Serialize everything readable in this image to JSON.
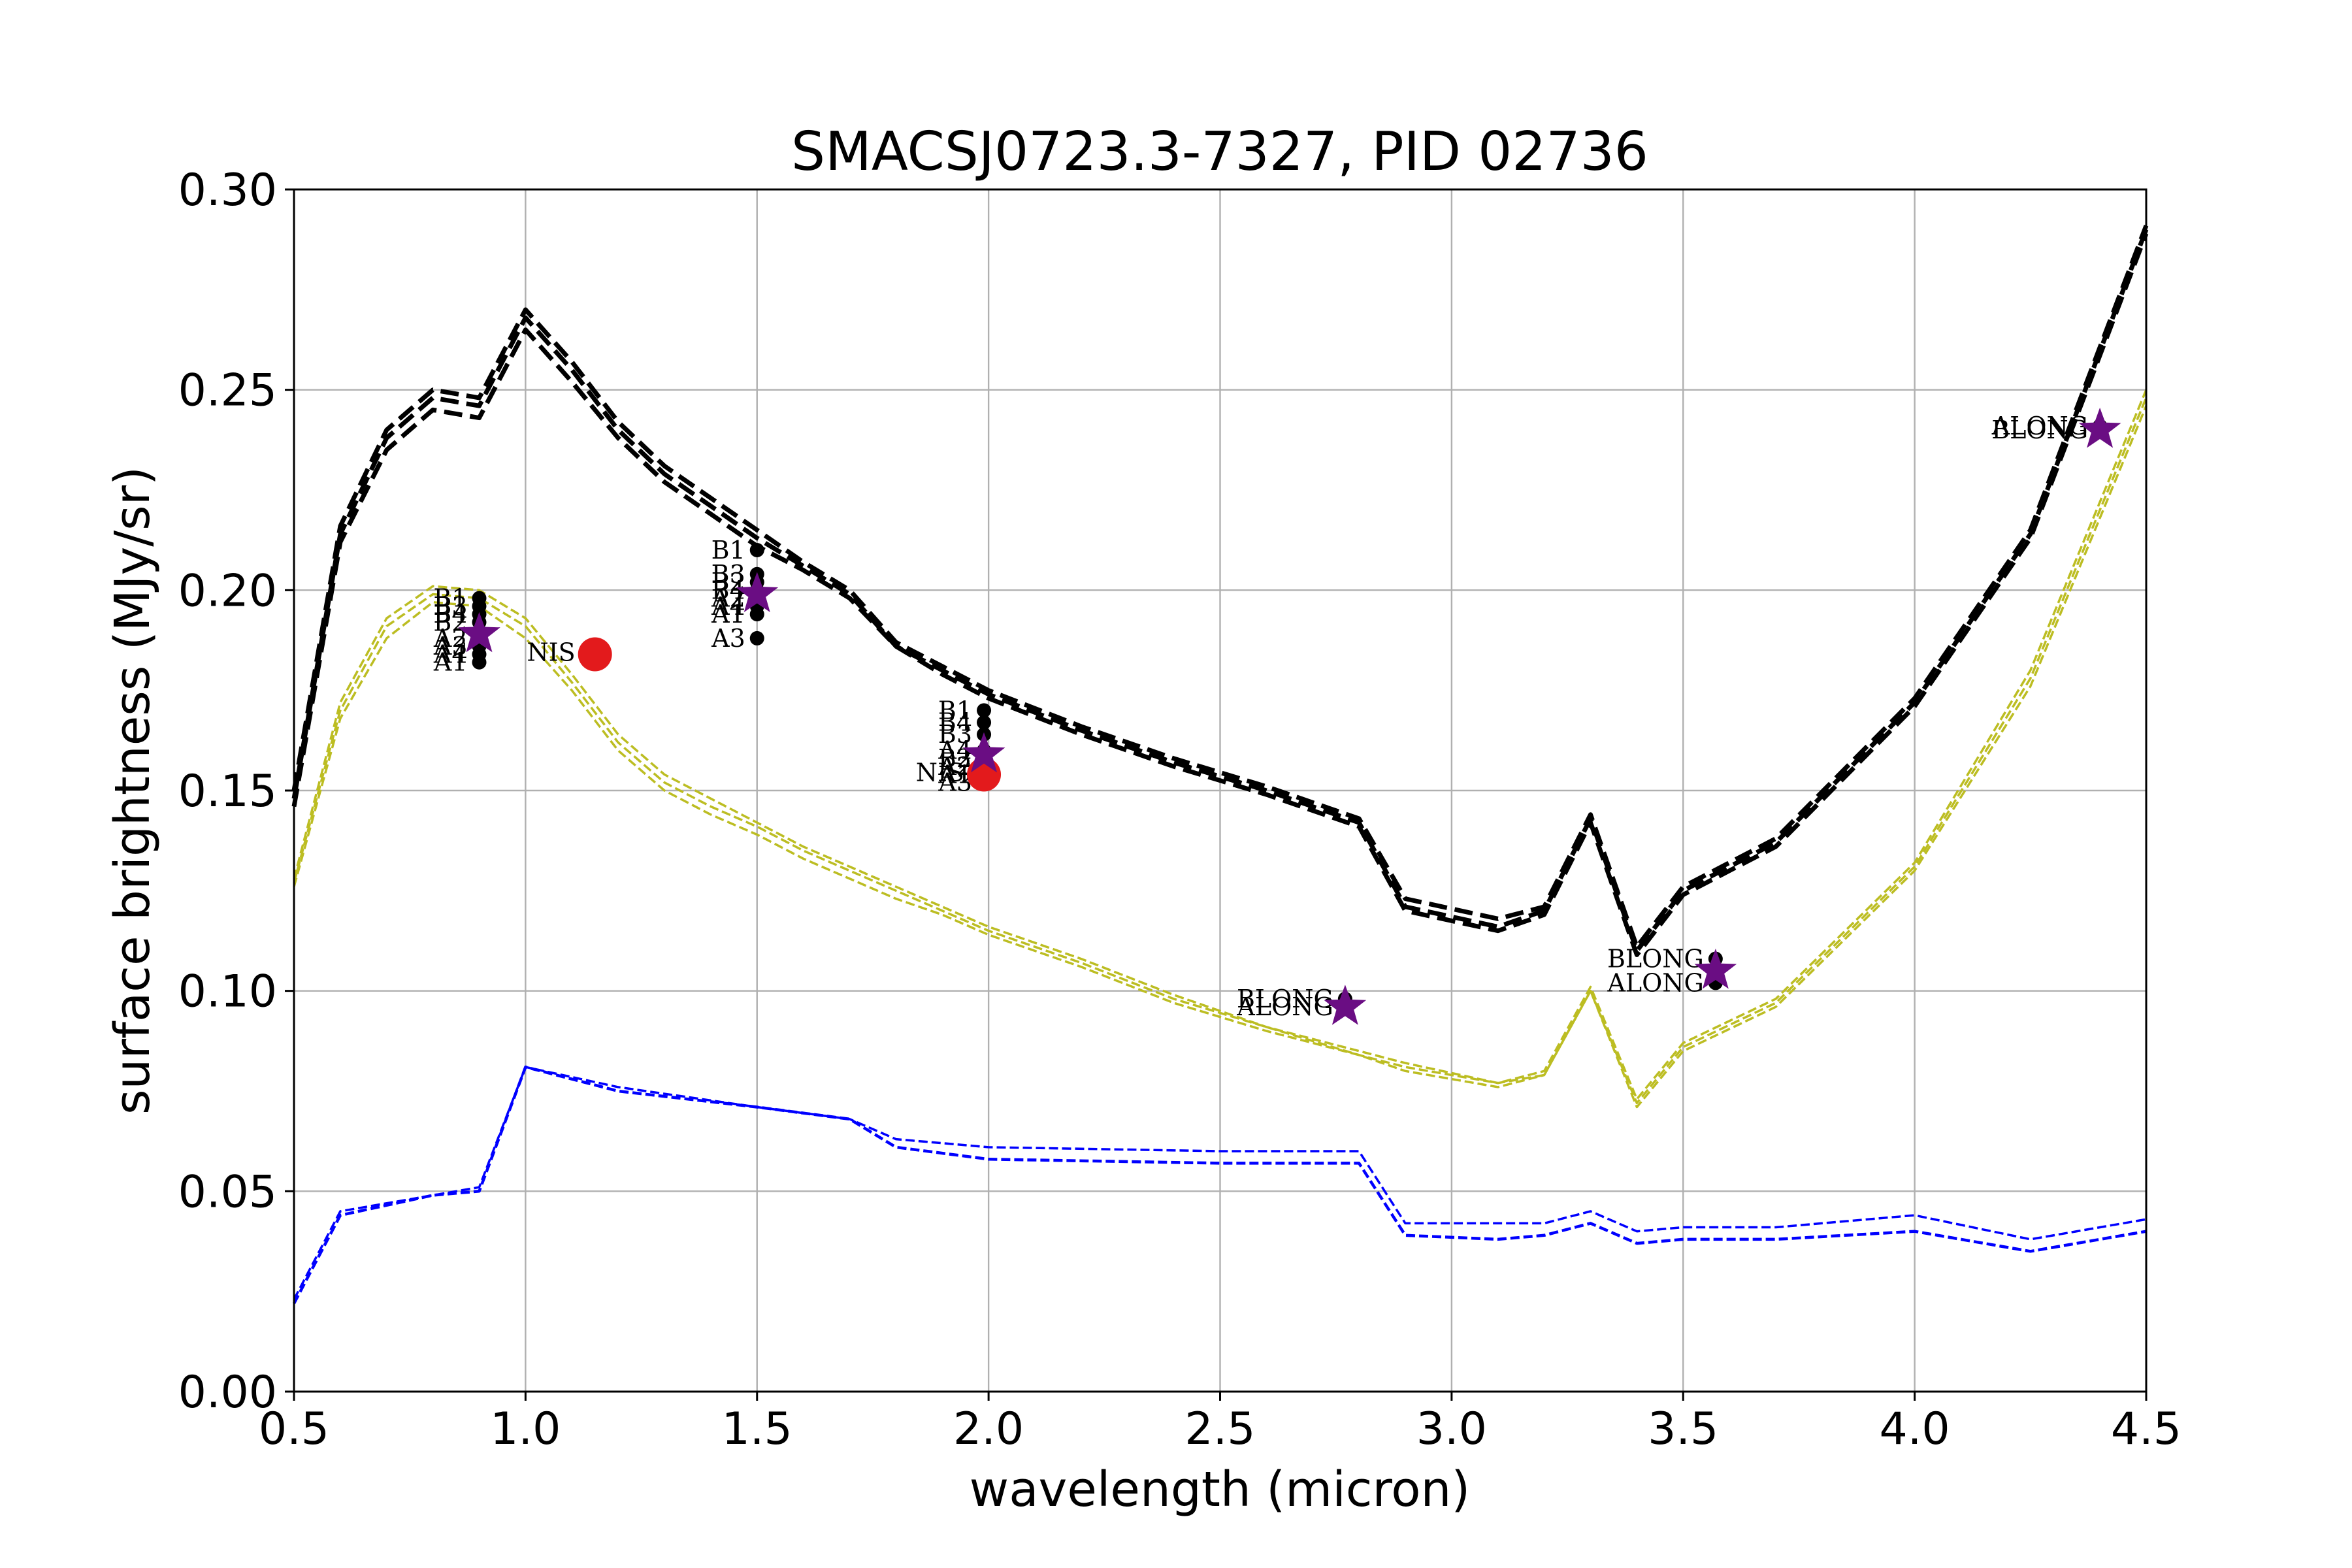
{
  "chart_data": {
    "type": "line",
    "title": "SMACSJ0723.3-7327, PID 02736",
    "xlabel": "wavelength (micron)",
    "ylabel": "surface brightness (MJy/sr)",
    "xlim": [
      0.5,
      4.5
    ],
    "ylim": [
      0.0,
      0.3
    ],
    "xticks": [
      "0.5",
      "1.0",
      "1.5",
      "2.0",
      "2.5",
      "3.0",
      "3.5",
      "4.0",
      "4.5"
    ],
    "yticks": [
      "0.00",
      "0.05",
      "0.10",
      "0.15",
      "0.20",
      "0.25",
      "0.30"
    ],
    "grid": true,
    "colors": {
      "total": "#000000",
      "zodi": "#bcbd22",
      "other": "#0000ff",
      "points": "#000000",
      "star": "#6a0d83",
      "nis": "#e31a1c"
    },
    "series": [
      {
        "style": "total-upper",
        "x": [
          0.5,
          0.6,
          0.7,
          0.8,
          0.9,
          1.0,
          1.1,
          1.2,
          1.3,
          1.4,
          1.5,
          1.6,
          1.7,
          1.8,
          1.9,
          2.0,
          2.2,
          2.4,
          2.6,
          2.8,
          2.9,
          3.1,
          3.2,
          3.3,
          3.4,
          3.5,
          3.7,
          4.0,
          4.25,
          4.5
        ],
        "y": [
          0.15,
          0.216,
          0.24,
          0.25,
          0.248,
          0.27,
          0.257,
          0.242,
          0.231,
          0.223,
          0.215,
          0.207,
          0.2,
          0.187,
          0.181,
          0.175,
          0.166,
          0.158,
          0.151,
          0.143,
          0.123,
          0.118,
          0.121,
          0.144,
          0.111,
          0.126,
          0.138,
          0.173,
          0.215,
          0.291
        ]
      },
      {
        "style": "total-mid",
        "x": [
          0.5,
          0.6,
          0.7,
          0.8,
          0.9,
          1.0,
          1.1,
          1.2,
          1.3,
          1.4,
          1.5,
          1.6,
          1.7,
          1.8,
          1.9,
          2.0,
          2.2,
          2.4,
          2.6,
          2.8,
          2.9,
          3.1,
          3.2,
          3.3,
          3.4,
          3.5,
          3.7,
          4.0,
          4.25,
          4.5
        ],
        "y": [
          0.148,
          0.214,
          0.238,
          0.248,
          0.246,
          0.268,
          0.255,
          0.24,
          0.229,
          0.221,
          0.213,
          0.206,
          0.199,
          0.186,
          0.18,
          0.174,
          0.165,
          0.157,
          0.15,
          0.142,
          0.121,
          0.116,
          0.12,
          0.143,
          0.11,
          0.125,
          0.137,
          0.172,
          0.214,
          0.29
        ]
      },
      {
        "style": "total-lower",
        "x": [
          0.5,
          0.6,
          0.7,
          0.8,
          0.9,
          1.0,
          1.1,
          1.2,
          1.3,
          1.4,
          1.5,
          1.6,
          1.7,
          1.8,
          1.9,
          2.0,
          2.2,
          2.4,
          2.6,
          2.8,
          2.9,
          3.1,
          3.2,
          3.3,
          3.4,
          3.5,
          3.7,
          4.0,
          4.25,
          4.5
        ],
        "y": [
          0.146,
          0.212,
          0.235,
          0.245,
          0.243,
          0.265,
          0.252,
          0.238,
          0.227,
          0.219,
          0.211,
          0.205,
          0.198,
          0.186,
          0.179,
          0.173,
          0.164,
          0.156,
          0.149,
          0.141,
          0.12,
          0.115,
          0.119,
          0.142,
          0.109,
          0.124,
          0.136,
          0.171,
          0.213,
          0.289
        ]
      },
      {
        "style": "zodi-upper",
        "x": [
          0.5,
          0.6,
          0.7,
          0.8,
          0.9,
          1.0,
          1.1,
          1.2,
          1.3,
          1.4,
          1.5,
          1.6,
          1.7,
          1.8,
          1.9,
          2.0,
          2.2,
          2.4,
          2.6,
          2.8,
          2.9,
          3.1,
          3.2,
          3.3,
          3.4,
          3.5,
          3.7,
          4.0,
          4.25,
          4.5
        ],
        "y": [
          0.128,
          0.172,
          0.193,
          0.201,
          0.2,
          0.193,
          0.179,
          0.164,
          0.154,
          0.148,
          0.142,
          0.136,
          0.131,
          0.126,
          0.121,
          0.116,
          0.108,
          0.099,
          0.091,
          0.085,
          0.082,
          0.077,
          0.08,
          0.101,
          0.073,
          0.087,
          0.098,
          0.132,
          0.18,
          0.25
        ]
      },
      {
        "style": "zodi-mid",
        "x": [
          0.5,
          0.6,
          0.7,
          0.8,
          0.9,
          1.0,
          1.1,
          1.2,
          1.3,
          1.4,
          1.5,
          1.6,
          1.7,
          1.8,
          1.9,
          2.0,
          2.2,
          2.4,
          2.6,
          2.8,
          2.9,
          3.1,
          3.2,
          3.3,
          3.4,
          3.5,
          3.7,
          4.0,
          4.25,
          4.5
        ],
        "y": [
          0.127,
          0.17,
          0.191,
          0.199,
          0.198,
          0.191,
          0.177,
          0.162,
          0.152,
          0.146,
          0.141,
          0.135,
          0.13,
          0.125,
          0.12,
          0.115,
          0.107,
          0.098,
          0.091,
          0.084,
          0.081,
          0.077,
          0.079,
          0.1,
          0.072,
          0.086,
          0.097,
          0.131,
          0.178,
          0.248
        ]
      },
      {
        "style": "zodi-lower",
        "x": [
          0.5,
          0.6,
          0.7,
          0.8,
          0.9,
          1.0,
          1.1,
          1.2,
          1.3,
          1.4,
          1.5,
          1.6,
          1.7,
          1.8,
          1.9,
          2.0,
          2.2,
          2.4,
          2.6,
          2.8,
          2.9,
          3.1,
          3.2,
          3.3,
          3.4,
          3.5,
          3.7,
          4.0,
          4.25,
          4.5
        ],
        "y": [
          0.126,
          0.168,
          0.188,
          0.197,
          0.196,
          0.188,
          0.175,
          0.16,
          0.15,
          0.144,
          0.139,
          0.133,
          0.128,
          0.123,
          0.119,
          0.114,
          0.106,
          0.097,
          0.09,
          0.084,
          0.08,
          0.076,
          0.079,
          0.1,
          0.071,
          0.085,
          0.096,
          0.13,
          0.176,
          0.246
        ]
      },
      {
        "style": "other-upper",
        "x": [
          0.5,
          0.6,
          0.8,
          0.9,
          1.0,
          1.2,
          1.5,
          1.7,
          1.8,
          2.0,
          2.5,
          2.8,
          2.9,
          3.1,
          3.2,
          3.3,
          3.4,
          3.5,
          3.7,
          4.0,
          4.25,
          4.5
        ],
        "y": [
          0.023,
          0.045,
          0.049,
          0.051,
          0.081,
          0.076,
          0.071,
          0.068,
          0.063,
          0.061,
          0.06,
          0.06,
          0.042,
          0.042,
          0.042,
          0.045,
          0.04,
          0.041,
          0.041,
          0.044,
          0.038,
          0.043
        ]
      },
      {
        "style": "other-lower",
        "x": [
          0.5,
          0.6,
          0.8,
          0.9,
          1.0,
          1.2,
          1.5,
          1.7,
          1.8,
          2.0,
          2.5,
          2.8,
          2.9,
          3.1,
          3.2,
          3.3,
          3.4,
          3.5,
          3.7,
          4.0,
          4.25,
          4.5
        ],
        "y": [
          0.022,
          0.044,
          0.049,
          0.05,
          0.081,
          0.075,
          0.071,
          0.068,
          0.061,
          0.058,
          0.057,
          0.057,
          0.039,
          0.038,
          0.039,
          0.042,
          0.037,
          0.038,
          0.038,
          0.04,
          0.035,
          0.04
        ]
      }
    ],
    "points": [
      {
        "x": 0.9,
        "y": 0.198,
        "label": "B1"
      },
      {
        "x": 0.9,
        "y": 0.196,
        "label": "B3"
      },
      {
        "x": 0.9,
        "y": 0.194,
        "label": "B4"
      },
      {
        "x": 0.9,
        "y": 0.192,
        "label": "B2"
      },
      {
        "x": 0.9,
        "y": 0.188,
        "label": "A2"
      },
      {
        "x": 0.9,
        "y": 0.186,
        "label": "A3"
      },
      {
        "x": 0.9,
        "y": 0.184,
        "label": "A4"
      },
      {
        "x": 0.9,
        "y": 0.182,
        "label": "A1"
      },
      {
        "x": 1.5,
        "y": 0.21,
        "label": "B1"
      },
      {
        "x": 1.5,
        "y": 0.204,
        "label": "B3"
      },
      {
        "x": 1.5,
        "y": 0.202,
        "label": "B2"
      },
      {
        "x": 1.5,
        "y": 0.2,
        "label": "B4"
      },
      {
        "x": 1.5,
        "y": 0.198,
        "label": "A2"
      },
      {
        "x": 1.5,
        "y": 0.196,
        "label": "A4"
      },
      {
        "x": 1.5,
        "y": 0.194,
        "label": "A1"
      },
      {
        "x": 1.5,
        "y": 0.188,
        "label": "A3"
      },
      {
        "x": 1.99,
        "y": 0.17,
        "label": "B1"
      },
      {
        "x": 1.99,
        "y": 0.167,
        "label": "B4"
      },
      {
        "x": 1.99,
        "y": 0.164,
        "label": "B3"
      },
      {
        "x": 1.99,
        "y": 0.16,
        "label": "A4"
      },
      {
        "x": 1.99,
        "y": 0.158,
        "label": "B2"
      },
      {
        "x": 1.99,
        "y": 0.156,
        "label": "A2"
      },
      {
        "x": 1.99,
        "y": 0.154,
        "label": "A1"
      },
      {
        "x": 1.99,
        "y": 0.152,
        "label": "A3"
      },
      {
        "x": 2.77,
        "y": 0.098,
        "label": "BLONG"
      },
      {
        "x": 2.77,
        "y": 0.096,
        "label": "ALONG"
      },
      {
        "x": 3.57,
        "y": 0.108,
        "label": "BLONG"
      },
      {
        "x": 3.57,
        "y": 0.102,
        "label": "ALONG"
      },
      {
        "x": 4.4,
        "y": 0.241,
        "label": "ALONG"
      },
      {
        "x": 4.4,
        "y": 0.24,
        "label": "BLONG"
      }
    ],
    "nis_points": [
      {
        "x": 1.15,
        "y": 0.184,
        "label": "NIS"
      },
      {
        "x": 1.99,
        "y": 0.154,
        "label": "NIS"
      }
    ],
    "stars": [
      {
        "x": 0.9,
        "y": 0.189
      },
      {
        "x": 1.5,
        "y": 0.199
      },
      {
        "x": 1.99,
        "y": 0.159
      },
      {
        "x": 2.77,
        "y": 0.096
      },
      {
        "x": 3.57,
        "y": 0.105
      },
      {
        "x": 4.4,
        "y": 0.24
      }
    ]
  }
}
